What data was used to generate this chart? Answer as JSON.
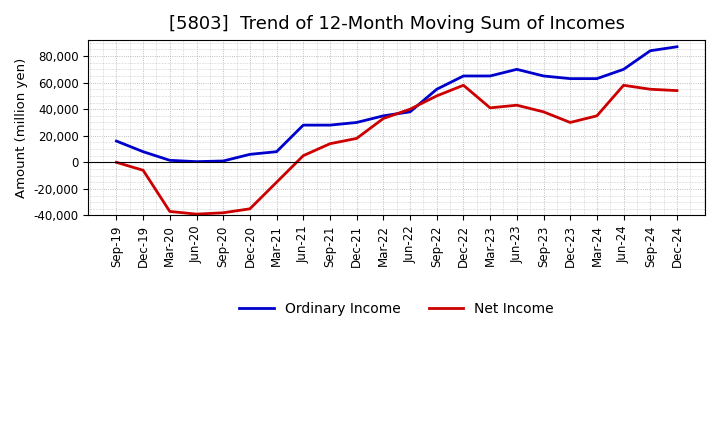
{
  "title": "[5803]  Trend of 12-Month Moving Sum of Incomes",
  "ylabel": "Amount (million yen)",
  "x_labels": [
    "Sep-19",
    "Dec-19",
    "Mar-20",
    "Jun-20",
    "Sep-20",
    "Dec-20",
    "Mar-21",
    "Jun-21",
    "Sep-21",
    "Dec-21",
    "Mar-22",
    "Jun-22",
    "Sep-22",
    "Dec-22",
    "Mar-23",
    "Jun-23",
    "Sep-23",
    "Dec-23",
    "Mar-24",
    "Jun-24",
    "Sep-24",
    "Dec-24"
  ],
  "ordinary_income": [
    16000,
    8000,
    1500,
    500,
    1000,
    6000,
    8000,
    28000,
    28000,
    30000,
    35000,
    38000,
    55000,
    65000,
    65000,
    70000,
    65000,
    63000,
    63000,
    70000,
    84000,
    87000
  ],
  "net_income": [
    0,
    -6000,
    -37000,
    -39000,
    -38000,
    -35000,
    -15000,
    5000,
    14000,
    18000,
    33000,
    40000,
    50000,
    58000,
    41000,
    43000,
    38000,
    30000,
    35000,
    58000,
    55000,
    54000
  ],
  "ordinary_color": "#0000cc",
  "net_color": "#cc0000",
  "ylim": [
    -40000,
    92000
  ],
  "yticks": [
    -40000,
    -20000,
    0,
    20000,
    40000,
    60000,
    80000
  ],
  "grid_color": "#aaaaaa",
  "bg_color": "#ffffff",
  "plot_bg_color": "#f0f0f0",
  "line_width": 2.0,
  "title_fontsize": 13,
  "legend_fontsize": 10,
  "tick_fontsize": 8.5
}
